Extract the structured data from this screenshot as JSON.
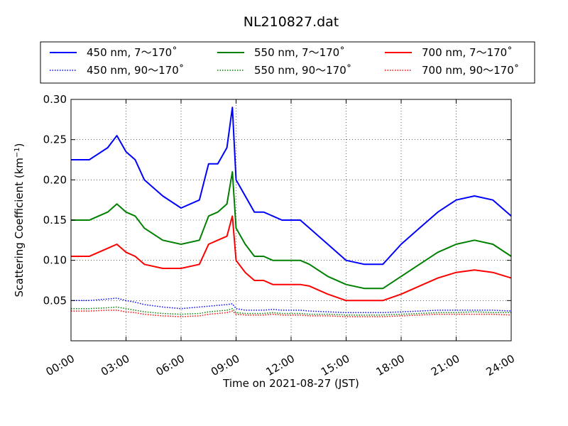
{
  "chart_data": {
    "type": "line",
    "title": "NL210827.dat",
    "xlabel": "Time on 2021-08-27 (JST)",
    "ylabel": "Scattering Coefficient (km⁻¹)",
    "x_unit": "hour",
    "xlim": [
      0,
      24
    ],
    "ylim": [
      0.0,
      0.3
    ],
    "x_ticks": [
      0,
      3,
      6,
      9,
      12,
      15,
      18,
      21,
      24
    ],
    "x_tick_labels": [
      "00:00",
      "03:00",
      "06:00",
      "09:00",
      "12:00",
      "15:00",
      "18:00",
      "21:00",
      "24:00"
    ],
    "y_ticks": [
      0.05,
      0.1,
      0.15,
      0.2,
      0.25,
      0.3
    ],
    "y_tick_labels": [
      "0.05",
      "0.10",
      "0.15",
      "0.20",
      "0.25",
      "0.30"
    ],
    "grid": true,
    "legend_position": "top, above plot",
    "x": [
      0,
      1,
      2,
      2.5,
      3,
      3.5,
      4,
      5,
      6,
      7,
      7.5,
      8,
      8.5,
      8.8,
      9,
      9.5,
      10,
      10.5,
      11,
      11.5,
      12,
      12.5,
      13,
      14,
      15,
      16,
      17,
      18,
      19,
      20,
      21,
      22,
      23,
      24
    ],
    "series": [
      {
        "name": "450 nm, 7～170˚",
        "color": "#0000ff",
        "style": "solid",
        "values": [
          0.225,
          0.225,
          0.24,
          0.255,
          0.235,
          0.225,
          0.2,
          0.18,
          0.165,
          0.175,
          0.22,
          0.22,
          0.24,
          0.29,
          0.2,
          0.18,
          0.16,
          0.16,
          0.155,
          0.15,
          0.15,
          0.15,
          0.14,
          0.12,
          0.1,
          0.095,
          0.095,
          0.12,
          0.14,
          0.16,
          0.175,
          0.18,
          0.175,
          0.155
        ]
      },
      {
        "name": "550 nm, 7～170˚",
        "color": "#008000",
        "style": "solid",
        "values": [
          0.15,
          0.15,
          0.16,
          0.17,
          0.16,
          0.155,
          0.14,
          0.125,
          0.12,
          0.125,
          0.155,
          0.16,
          0.17,
          0.21,
          0.14,
          0.12,
          0.105,
          0.105,
          0.1,
          0.1,
          0.1,
          0.1,
          0.095,
          0.08,
          0.07,
          0.065,
          0.065,
          0.08,
          0.095,
          0.11,
          0.12,
          0.125,
          0.12,
          0.105
        ]
      },
      {
        "name": "700 nm, 7～170˚",
        "color": "#ff0000",
        "style": "solid",
        "values": [
          0.105,
          0.105,
          0.115,
          0.12,
          0.11,
          0.105,
          0.095,
          0.09,
          0.09,
          0.095,
          0.12,
          0.125,
          0.13,
          0.155,
          0.1,
          0.085,
          0.075,
          0.075,
          0.07,
          0.07,
          0.07,
          0.07,
          0.068,
          0.058,
          0.05,
          0.05,
          0.05,
          0.058,
          0.068,
          0.078,
          0.085,
          0.088,
          0.085,
          0.078
        ]
      },
      {
        "name": "450 nm, 90～170˚",
        "color": "#0000ff",
        "style": "dotted",
        "values": [
          0.05,
          0.05,
          0.052,
          0.053,
          0.05,
          0.048,
          0.045,
          0.042,
          0.04,
          0.042,
          0.043,
          0.044,
          0.045,
          0.046,
          0.04,
          0.038,
          0.038,
          0.038,
          0.039,
          0.038,
          0.038,
          0.038,
          0.037,
          0.036,
          0.035,
          0.035,
          0.035,
          0.036,
          0.037,
          0.038,
          0.038,
          0.038,
          0.038,
          0.037
        ]
      },
      {
        "name": "550 nm, 90～170˚",
        "color": "#008000",
        "style": "dotted",
        "values": [
          0.04,
          0.04,
          0.041,
          0.042,
          0.04,
          0.038,
          0.036,
          0.034,
          0.033,
          0.034,
          0.036,
          0.037,
          0.038,
          0.04,
          0.035,
          0.034,
          0.034,
          0.034,
          0.035,
          0.034,
          0.034,
          0.034,
          0.033,
          0.033,
          0.032,
          0.032,
          0.032,
          0.033,
          0.034,
          0.035,
          0.035,
          0.036,
          0.035,
          0.035
        ]
      },
      {
        "name": "700 nm, 90～170˚",
        "color": "#ff0000",
        "style": "dotted",
        "values": [
          0.037,
          0.037,
          0.038,
          0.038,
          0.036,
          0.035,
          0.033,
          0.031,
          0.03,
          0.031,
          0.033,
          0.034,
          0.035,
          0.037,
          0.033,
          0.032,
          0.032,
          0.032,
          0.033,
          0.032,
          0.032,
          0.032,
          0.031,
          0.031,
          0.03,
          0.03,
          0.03,
          0.031,
          0.032,
          0.033,
          0.033,
          0.033,
          0.033,
          0.032
        ]
      }
    ]
  }
}
